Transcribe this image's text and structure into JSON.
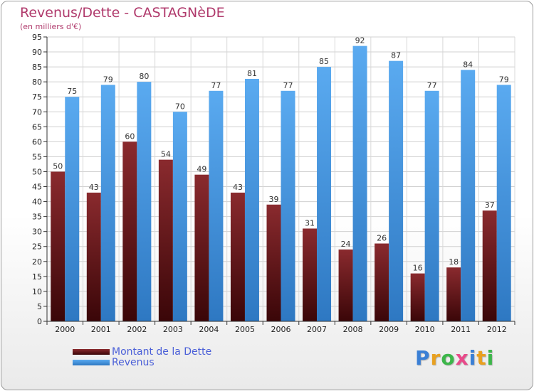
{
  "title": "Revenus/Dette - CASTAGNèDE",
  "subtitle": "(en milliers d'€)",
  "chart_data": {
    "type": "bar",
    "title": "Revenus/Dette - CASTAGNèDE",
    "subtitle": "(en milliers d'€)",
    "categories": [
      "2000",
      "2001",
      "2002",
      "2003",
      "2004",
      "2005",
      "2006",
      "2007",
      "2008",
      "2009",
      "2010",
      "2011",
      "2012"
    ],
    "series": [
      {
        "name": "Montant de la Dette",
        "values": [
          50,
          43,
          60,
          54,
          49,
          43,
          39,
          31,
          24,
          26,
          16,
          18,
          37
        ],
        "color": "#7a1e22"
      },
      {
        "name": "Revenus",
        "values": [
          75,
          79,
          80,
          70,
          77,
          81,
          77,
          85,
          92,
          87,
          77,
          84,
          79
        ],
        "color": "#4f9fe0"
      }
    ],
    "ylim": [
      0,
      95
    ],
    "yticks": [
      0,
      5,
      10,
      15,
      20,
      25,
      30,
      35,
      40,
      45,
      50,
      55,
      60,
      65,
      70,
      75,
      80,
      85,
      90,
      95
    ],
    "xlabel": "",
    "ylabel": "",
    "grid": true,
    "legend": "bottom-left"
  },
  "legend": {
    "items": [
      {
        "label": "Montant de la Dette",
        "color": "#7a1e22"
      },
      {
        "label": "Revenus",
        "color": "#4f9fe0"
      }
    ]
  },
  "logo": {
    "text": "Proxiti",
    "letters": [
      "P",
      "r",
      "o",
      "x",
      "i",
      "t",
      "i"
    ],
    "colors": [
      "#3a7fd5",
      "#e8a020",
      "#3cb64a",
      "#e84a8a",
      "#3a7fd5",
      "#e8a020",
      "#3cb64a"
    ]
  }
}
